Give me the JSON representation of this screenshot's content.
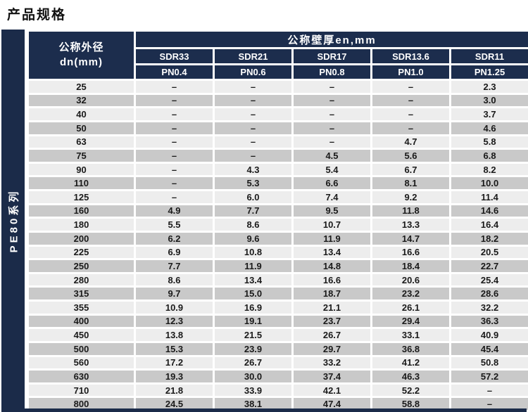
{
  "page_title": "产品规格",
  "series_label": "PE80系列",
  "colors": {
    "header_navy": "#1c2d4d",
    "sidebar_navy": "#1b2b49",
    "row_light": "#ededed",
    "row_dark": "#c9c9c9"
  },
  "table": {
    "dn_header_line1": "公称外径",
    "dn_header_line2": "dn(mm)",
    "group_header": "公称壁厚en,mm",
    "sdr_headers": [
      "SDR33",
      "SDR21",
      "SDR17",
      "SDR13.6",
      "SDR11"
    ],
    "pn_headers": [
      "PN0.4",
      "PN0.6",
      "PN0.8",
      "PN1.0",
      "PN1.25"
    ],
    "rows": [
      {
        "dn": "25",
        "values": [
          "–",
          "–",
          "–",
          "–",
          "2.3"
        ]
      },
      {
        "dn": "32",
        "values": [
          "–",
          "–",
          "–",
          "–",
          "3.0"
        ]
      },
      {
        "dn": "40",
        "values": [
          "–",
          "–",
          "–",
          "–",
          "3.7"
        ]
      },
      {
        "dn": "50",
        "values": [
          "–",
          "–",
          "–",
          "–",
          "4.6"
        ]
      },
      {
        "dn": "63",
        "values": [
          "–",
          "–",
          "–",
          "4.7",
          "5.8"
        ]
      },
      {
        "dn": "75",
        "values": [
          "–",
          "–",
          "4.5",
          "5.6",
          "6.8"
        ]
      },
      {
        "dn": "90",
        "values": [
          "–",
          "4.3",
          "5.4",
          "6.7",
          "8.2"
        ]
      },
      {
        "dn": "110",
        "values": [
          "–",
          "5.3",
          "6.6",
          "8.1",
          "10.0"
        ]
      },
      {
        "dn": "125",
        "values": [
          "–",
          "6.0",
          "7.4",
          "9.2",
          "11.4"
        ]
      },
      {
        "dn": "160",
        "values": [
          "4.9",
          "7.7",
          "9.5",
          "11.8",
          "14.6"
        ]
      },
      {
        "dn": "180",
        "values": [
          "5.5",
          "8.6",
          "10.7",
          "13.3",
          "16.4"
        ]
      },
      {
        "dn": "200",
        "values": [
          "6.2",
          "9.6",
          "11.9",
          "14.7",
          "18.2"
        ]
      },
      {
        "dn": "225",
        "values": [
          "6.9",
          "10.8",
          "13.4",
          "16.6",
          "20.5"
        ]
      },
      {
        "dn": "250",
        "values": [
          "7.7",
          "11.9",
          "14.8",
          "18.4",
          "22.7"
        ]
      },
      {
        "dn": "280",
        "values": [
          "8.6",
          "13.4",
          "16.6",
          "20.6",
          "25.4"
        ]
      },
      {
        "dn": "315",
        "values": [
          "9.7",
          "15.0",
          "18.7",
          "23.2",
          "28.6"
        ]
      },
      {
        "dn": "355",
        "values": [
          "10.9",
          "16.9",
          "21.1",
          "26.1",
          "32.2"
        ]
      },
      {
        "dn": "400",
        "values": [
          "12.3",
          "19.1",
          "23.7",
          "29.4",
          "36.3"
        ]
      },
      {
        "dn": "450",
        "values": [
          "13.8",
          "21.5",
          "26.7",
          "33.1",
          "40.9"
        ]
      },
      {
        "dn": "500",
        "values": [
          "15.3",
          "23.9",
          "29.7",
          "36.8",
          "45.4"
        ]
      },
      {
        "dn": "560",
        "values": [
          "17.2",
          "26.7",
          "33.2",
          "41.2",
          "50.8"
        ]
      },
      {
        "dn": "630",
        "values": [
          "19.3",
          "30.0",
          "37.4",
          "46.3",
          "57.2"
        ]
      },
      {
        "dn": "710",
        "values": [
          "21.8",
          "33.9",
          "42.1",
          "52.2",
          "–"
        ]
      },
      {
        "dn": "800",
        "values": [
          "24.5",
          "38.1",
          "47.4",
          "58.8",
          "–"
        ]
      }
    ]
  }
}
